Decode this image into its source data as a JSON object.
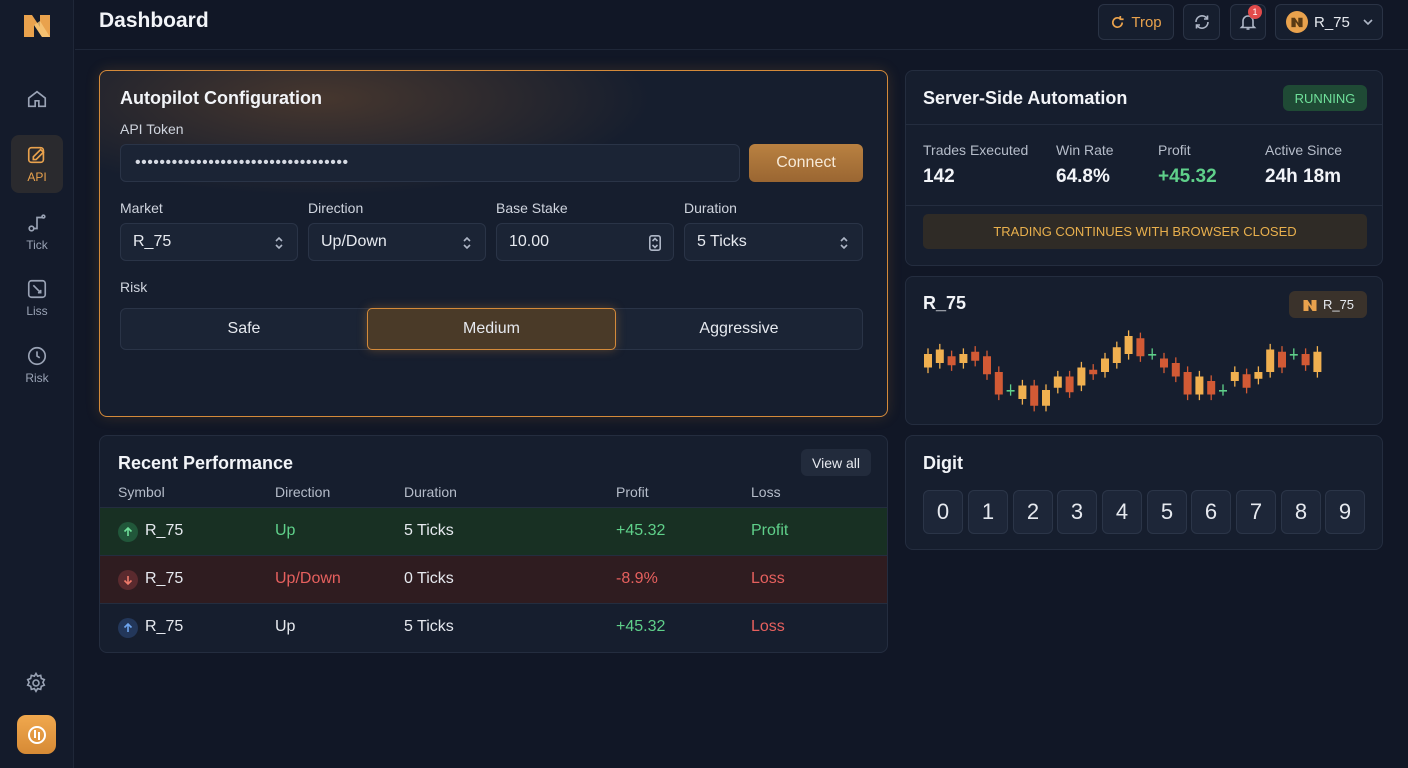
{
  "header": {
    "title": "Dashboard",
    "trop_label": "Trop",
    "notification_count": "1",
    "account_label": "R_75"
  },
  "sidebar": {
    "items": [
      {
        "label": ""
      },
      {
        "label": "API"
      },
      {
        "label": "Tick"
      },
      {
        "label": "Liss"
      },
      {
        "label": "Risk"
      }
    ]
  },
  "autopilot": {
    "title": "Autopilot Configuration",
    "api_token_label": "API Token",
    "api_token_value": "•••••••••••••••••••••••••••••••••••",
    "connect_label": "Connect",
    "market_label": "Market",
    "market_value": "R_75",
    "direction_label": "Direction",
    "direction_value": "Up/Down",
    "stake_label": "Base Stake",
    "stake_value": "10.00",
    "duration_label": "Duration",
    "duration_value": "5 Ticks",
    "risk_label": "Risk",
    "risk_options": [
      "Safe",
      "Medium",
      "Aggressive"
    ],
    "risk_selected": "Medium"
  },
  "server": {
    "title": "Server-Side Automation",
    "status": "RUNNING",
    "stats": [
      {
        "label": "Trades Executed",
        "value": "142"
      },
      {
        "label": "Win Rate",
        "value": "64.8%"
      },
      {
        "label": "Profit",
        "value": "+45.32"
      },
      {
        "label": "Active Since",
        "value": "24h 18m"
      }
    ],
    "banner": "TRADING CONTINUES WITH BROWSER CLOSED"
  },
  "chart_panel": {
    "title": "R_75",
    "badge": "R_75"
  },
  "chart_data": {
    "type": "candlestick",
    "title": "R_75",
    "colors": {
      "up": "#f0b050",
      "down": "#d25a35",
      "neutral": "#e8d8b0",
      "green": "#5fd08a"
    },
    "candles": [
      {
        "o": 50,
        "c": 56
      },
      {
        "o": 52,
        "c": 58
      },
      {
        "o": 55,
        "c": 51
      },
      {
        "o": 52,
        "c": 56
      },
      {
        "o": 57,
        "c": 53
      },
      {
        "o": 55,
        "c": 47
      },
      {
        "o": 48,
        "c": 38
      },
      {
        "o": 40,
        "c": 40
      },
      {
        "o": 36,
        "c": 42
      },
      {
        "o": 42,
        "c": 33
      },
      {
        "o": 33,
        "c": 40
      },
      {
        "o": 41,
        "c": 46
      },
      {
        "o": 46,
        "c": 39
      },
      {
        "o": 42,
        "c": 50
      },
      {
        "o": 49,
        "c": 47
      },
      {
        "o": 48,
        "c": 54
      },
      {
        "o": 52,
        "c": 59
      },
      {
        "o": 56,
        "c": 64
      },
      {
        "o": 63,
        "c": 55
      },
      {
        "o": 56,
        "c": 56
      },
      {
        "o": 54,
        "c": 50
      },
      {
        "o": 52,
        "c": 46
      },
      {
        "o": 48,
        "c": 38
      },
      {
        "o": 38,
        "c": 46
      },
      {
        "o": 44,
        "c": 38
      },
      {
        "o": 40,
        "c": 40
      },
      {
        "o": 44,
        "c": 48
      },
      {
        "o": 47,
        "c": 41
      },
      {
        "o": 45,
        "c": 48
      },
      {
        "o": 48,
        "c": 58
      },
      {
        "o": 57,
        "c": 50
      },
      {
        "o": 56,
        "c": 56
      },
      {
        "o": 56,
        "c": 51
      },
      {
        "o": 48,
        "c": 57
      }
    ]
  },
  "digit_panel": {
    "title": "Digit",
    "digits": [
      "0",
      "1",
      "2",
      "3",
      "4",
      "5",
      "6",
      "7",
      "8",
      "9"
    ]
  },
  "performance": {
    "title": "Recent Performance",
    "view_all": "View all",
    "columns": [
      "Symbol",
      "Direction",
      "Duration",
      "Profit",
      "Loss"
    ],
    "rows": [
      {
        "symbol": "R_75",
        "direction": "Up",
        "duration": "5 Ticks",
        "profit": "+45.32",
        "status": "Profit"
      },
      {
        "symbol": "R_75",
        "direction": "Up/Down",
        "duration": "0 Ticks",
        "profit": "-8.9%",
        "status": "Loss"
      },
      {
        "symbol": "R_75",
        "direction": "Up",
        "duration": "5 Ticks",
        "profit": "+45.32",
        "status": "Loss"
      }
    ]
  }
}
